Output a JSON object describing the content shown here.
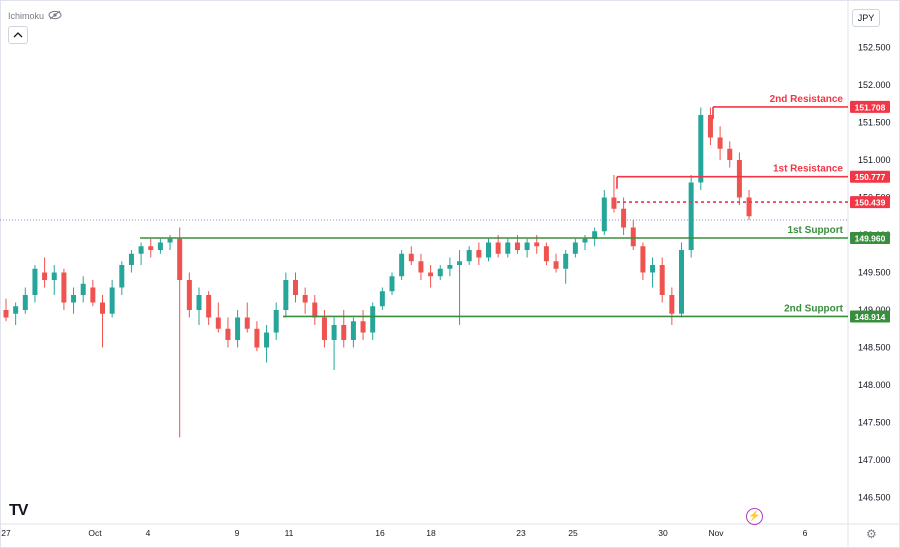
{
  "chart_data": {
    "type": "candlestick",
    "title": "",
    "indicator": "Ichimoku",
    "currency": "JPY",
    "ylim": [
      146.25,
      153.0
    ],
    "y_ticks": [
      "146.500",
      "147.000",
      "147.500",
      "148.000",
      "148.500",
      "149.000",
      "149.500",
      "150.000",
      "150.500",
      "151.000",
      "151.500",
      "152.000",
      "152.500"
    ],
    "x_ticks": [
      "27",
      "Oct",
      "4",
      "9",
      "11",
      "16",
      "18",
      "23",
      "25",
      "30",
      "Nov",
      "6"
    ],
    "last_price": 150.2,
    "levels": [
      {
        "name": "2nd Resistance",
        "value": 151.708,
        "label": "151.708",
        "kind": "resistance"
      },
      {
        "name": "1st Resistance",
        "value": 150.777,
        "label": "150.777",
        "kind": "resistance"
      },
      {
        "name": "",
        "value": 150.439,
        "label": "150.439",
        "kind": "entry"
      },
      {
        "name": "1st Support",
        "value": 149.96,
        "label": "149.960",
        "kind": "support"
      },
      {
        "name": "2nd Support",
        "value": 148.914,
        "label": "148.914",
        "kind": "support"
      }
    ],
    "colors": {
      "up": "#26a69a",
      "down": "#ef5350",
      "resistance": "#f23645",
      "support": "#388e3c",
      "axis_text": "#131722"
    }
  },
  "ui": {
    "indicator_label": "Ichimoku",
    "currency_label": "JPY",
    "logo_text": "TV",
    "settings_icon": "gear-icon",
    "bolt_icon": "bolt-icon"
  }
}
